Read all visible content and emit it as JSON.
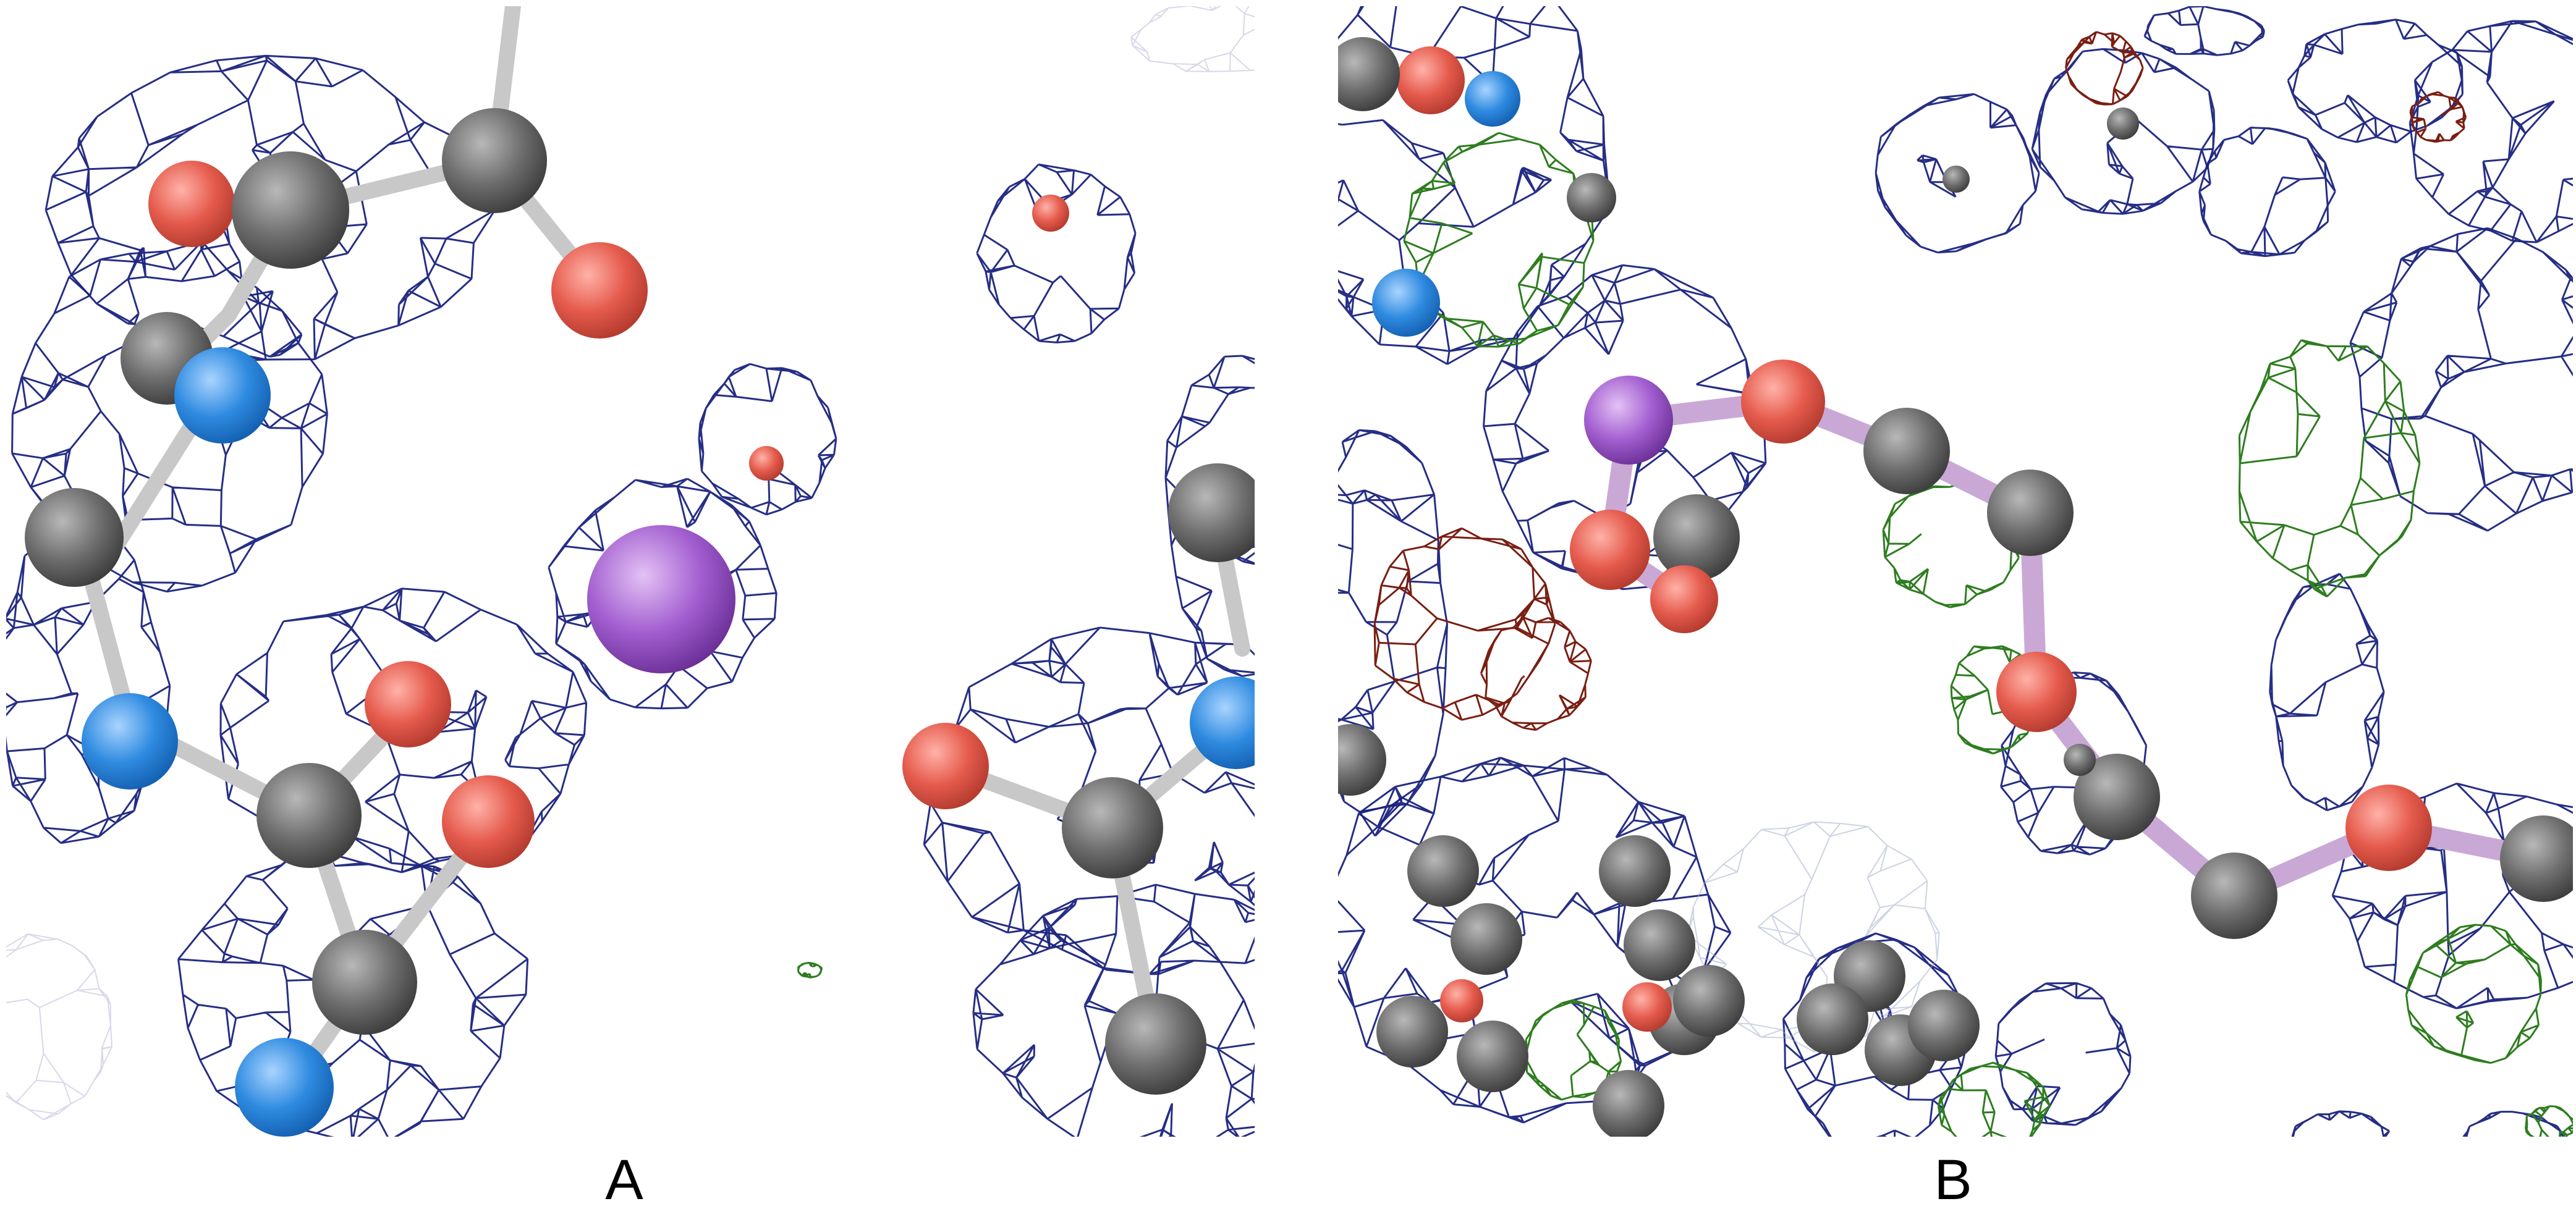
{
  "panels": [
    {
      "label": "A"
    },
    {
      "label": "B"
    }
  ],
  "colors": {
    "density_mesh": "#1a237e",
    "positive_difference_mesh": "#2e7d1f",
    "negative_difference_mesh": "#7a1e12",
    "carbon": "#6e6e6e",
    "oxygen": "#e55b4d",
    "nitrogen": "#2f8be0",
    "metal_ion": "#a35fd0",
    "bond": "#c8c8c8",
    "ligand_bond": "#c9a8d6"
  }
}
